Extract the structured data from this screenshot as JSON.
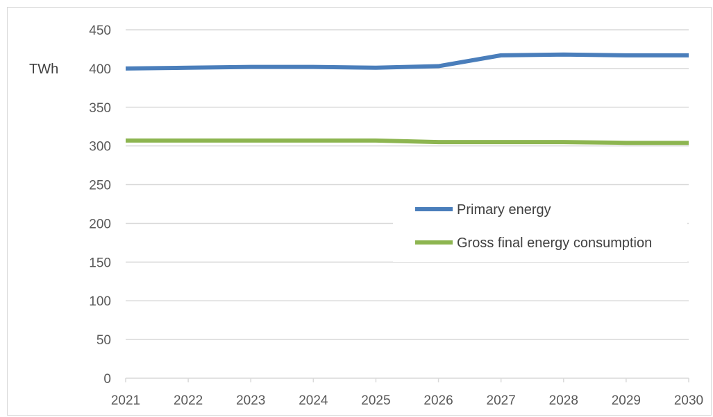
{
  "chart_data": {
    "type": "line",
    "ylabel": "TWh",
    "ylim": [
      0,
      450
    ],
    "yticks": [
      "0",
      "50",
      "100",
      "150",
      "200",
      "250",
      "300",
      "350",
      "400",
      "450"
    ],
    "categories": [
      "2021",
      "2022",
      "2023",
      "2024",
      "2025",
      "2026",
      "2027",
      "2028",
      "2029",
      "2030"
    ],
    "grid": true,
    "legend_position": "right-center",
    "series": [
      {
        "name": "Primary energy",
        "color": "#4a7ebb",
        "values": [
          400,
          401,
          402,
          402,
          401,
          403,
          417,
          418,
          417,
          417
        ]
      },
      {
        "name": "Gross final energy consumption",
        "color": "#8db550",
        "values": [
          307,
          307,
          307,
          307,
          307,
          305,
          305,
          305,
          304,
          304
        ]
      }
    ]
  }
}
